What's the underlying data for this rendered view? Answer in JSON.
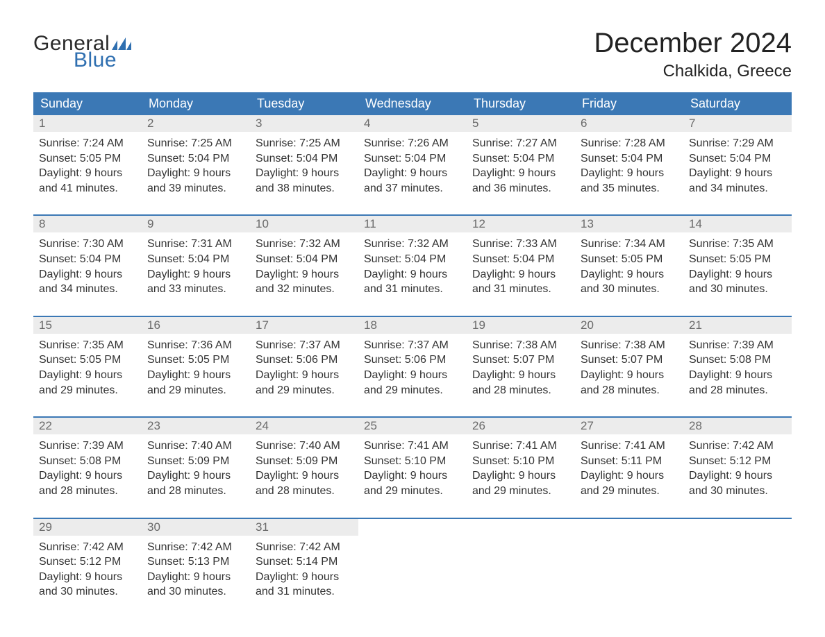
{
  "brand": {
    "word1": "General",
    "word2": "Blue",
    "flag_color": "#2f6fb0"
  },
  "title": "December 2024",
  "location": "Chalkida, Greece",
  "colors": {
    "header_bg": "#3b78b5",
    "header_text": "#ffffff",
    "daynum_bg": "#ececec",
    "daynum_text": "#6a6a6a",
    "body_text": "#333333",
    "rule": "#3b78b5",
    "page_bg": "#ffffff"
  },
  "typography": {
    "title_fontsize": 40,
    "location_fontsize": 24,
    "dow_fontsize": 18,
    "daynum_fontsize": 17,
    "cell_fontsize": 16,
    "font_family": "Arial"
  },
  "days_of_week": [
    "Sunday",
    "Monday",
    "Tuesday",
    "Wednesday",
    "Thursday",
    "Friday",
    "Saturday"
  ],
  "labels": {
    "sunrise": "Sunrise:",
    "sunset": "Sunset:",
    "daylight": "Daylight:"
  },
  "weeks": [
    [
      {
        "n": "1",
        "sunrise": "7:24 AM",
        "sunset": "5:05 PM",
        "daylight": "9 hours and 41 minutes."
      },
      {
        "n": "2",
        "sunrise": "7:25 AM",
        "sunset": "5:04 PM",
        "daylight": "9 hours and 39 minutes."
      },
      {
        "n": "3",
        "sunrise": "7:25 AM",
        "sunset": "5:04 PM",
        "daylight": "9 hours and 38 minutes."
      },
      {
        "n": "4",
        "sunrise": "7:26 AM",
        "sunset": "5:04 PM",
        "daylight": "9 hours and 37 minutes."
      },
      {
        "n": "5",
        "sunrise": "7:27 AM",
        "sunset": "5:04 PM",
        "daylight": "9 hours and 36 minutes."
      },
      {
        "n": "6",
        "sunrise": "7:28 AM",
        "sunset": "5:04 PM",
        "daylight": "9 hours and 35 minutes."
      },
      {
        "n": "7",
        "sunrise": "7:29 AM",
        "sunset": "5:04 PM",
        "daylight": "9 hours and 34 minutes."
      }
    ],
    [
      {
        "n": "8",
        "sunrise": "7:30 AM",
        "sunset": "5:04 PM",
        "daylight": "9 hours and 34 minutes."
      },
      {
        "n": "9",
        "sunrise": "7:31 AM",
        "sunset": "5:04 PM",
        "daylight": "9 hours and 33 minutes."
      },
      {
        "n": "10",
        "sunrise": "7:32 AM",
        "sunset": "5:04 PM",
        "daylight": "9 hours and 32 minutes."
      },
      {
        "n": "11",
        "sunrise": "7:32 AM",
        "sunset": "5:04 PM",
        "daylight": "9 hours and 31 minutes."
      },
      {
        "n": "12",
        "sunrise": "7:33 AM",
        "sunset": "5:04 PM",
        "daylight": "9 hours and 31 minutes."
      },
      {
        "n": "13",
        "sunrise": "7:34 AM",
        "sunset": "5:05 PM",
        "daylight": "9 hours and 30 minutes."
      },
      {
        "n": "14",
        "sunrise": "7:35 AM",
        "sunset": "5:05 PM",
        "daylight": "9 hours and 30 minutes."
      }
    ],
    [
      {
        "n": "15",
        "sunrise": "7:35 AM",
        "sunset": "5:05 PM",
        "daylight": "9 hours and 29 minutes."
      },
      {
        "n": "16",
        "sunrise": "7:36 AM",
        "sunset": "5:05 PM",
        "daylight": "9 hours and 29 minutes."
      },
      {
        "n": "17",
        "sunrise": "7:37 AM",
        "sunset": "5:06 PM",
        "daylight": "9 hours and 29 minutes."
      },
      {
        "n": "18",
        "sunrise": "7:37 AM",
        "sunset": "5:06 PM",
        "daylight": "9 hours and 29 minutes."
      },
      {
        "n": "19",
        "sunrise": "7:38 AM",
        "sunset": "5:07 PM",
        "daylight": "9 hours and 28 minutes."
      },
      {
        "n": "20",
        "sunrise": "7:38 AM",
        "sunset": "5:07 PM",
        "daylight": "9 hours and 28 minutes."
      },
      {
        "n": "21",
        "sunrise": "7:39 AM",
        "sunset": "5:08 PM",
        "daylight": "9 hours and 28 minutes."
      }
    ],
    [
      {
        "n": "22",
        "sunrise": "7:39 AM",
        "sunset": "5:08 PM",
        "daylight": "9 hours and 28 minutes."
      },
      {
        "n": "23",
        "sunrise": "7:40 AM",
        "sunset": "5:09 PM",
        "daylight": "9 hours and 28 minutes."
      },
      {
        "n": "24",
        "sunrise": "7:40 AM",
        "sunset": "5:09 PM",
        "daylight": "9 hours and 28 minutes."
      },
      {
        "n": "25",
        "sunrise": "7:41 AM",
        "sunset": "5:10 PM",
        "daylight": "9 hours and 29 minutes."
      },
      {
        "n": "26",
        "sunrise": "7:41 AM",
        "sunset": "5:10 PM",
        "daylight": "9 hours and 29 minutes."
      },
      {
        "n": "27",
        "sunrise": "7:41 AM",
        "sunset": "5:11 PM",
        "daylight": "9 hours and 29 minutes."
      },
      {
        "n": "28",
        "sunrise": "7:42 AM",
        "sunset": "5:12 PM",
        "daylight": "9 hours and 30 minutes."
      }
    ],
    [
      {
        "n": "29",
        "sunrise": "7:42 AM",
        "sunset": "5:12 PM",
        "daylight": "9 hours and 30 minutes."
      },
      {
        "n": "30",
        "sunrise": "7:42 AM",
        "sunset": "5:13 PM",
        "daylight": "9 hours and 30 minutes."
      },
      {
        "n": "31",
        "sunrise": "7:42 AM",
        "sunset": "5:14 PM",
        "daylight": "9 hours and 31 minutes."
      },
      null,
      null,
      null,
      null
    ]
  ]
}
